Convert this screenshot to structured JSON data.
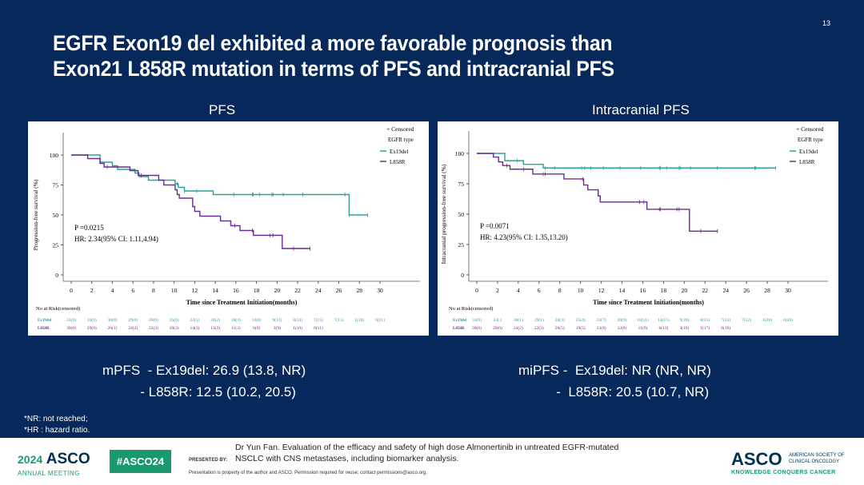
{
  "slide": {
    "page_number": "13",
    "title_line1": "EGFR Exon19 del exhibited a more favorable prognosis than",
    "title_line2": "Exon21 L858R mutation in terms of PFS and intracranial PFS",
    "pfs_summary_line1": "mPFS  - Ex19del: 26.9 (13.8, NR)",
    "pfs_summary_line2": "          - L858R: 12.5 (10.2, 20.5)",
    "ipfs_summary_line1": "miPFS -  Ex19del: NR (NR, NR)",
    "ipfs_summary_line2": "          -  L858R: 20.5 (10.7, NR)",
    "note1": "*NR: not reached;",
    "note2": "*HR : hazard ratio."
  },
  "footer": {
    "logo_year": "2024",
    "logo_text": "ASCO",
    "logo_sub": "ANNUAL MEETING",
    "hashtag": "#ASCO24",
    "presented_by": "PRESENTED BY:",
    "citation": "Dr Yun Fan. Evaluation of the efficacy and safety of high dose Almonertinib in untreated EGFR-mutated\nNSCLC with CNS metastases, including biomarker analysis.",
    "property": "Presentation is property of the author and ASCO. Permission required for reuse; contact permissions@asco.org.",
    "asco_right": "ASCO",
    "asco_society": "AMERICAN SOCIETY OF\nCLINICAL ONCOLOGY",
    "asco_tagline": "KNOWLEDGE CONQUERS CANCER"
  },
  "colors": {
    "background": "#06285a",
    "ex19del": "#2aa198",
    "l858r": "#6a2c91",
    "accent": "#1a9a6c"
  },
  "chart_data": [
    {
      "type": "line",
      "subtype": "kaplan-meier",
      "title": "PFS",
      "xlabel": "Time since Treatment Initiation(months)",
      "ylabel": "Progression-free survival (%)",
      "xlim": [
        0,
        30
      ],
      "ylim": [
        0,
        100
      ],
      "xticks": [
        0,
        2,
        4,
        6,
        8,
        10,
        12,
        14,
        16,
        18,
        20,
        22,
        24,
        26,
        28,
        30
      ],
      "yticks": [
        0,
        25,
        50,
        75,
        100
      ],
      "legend": {
        "censored": "+ Censored",
        "title": "EGFR type",
        "placement": "top-right"
      },
      "annotation_p": "P =0.0215",
      "annotation_hr": "HR: 2.34(95% CI: 1.11,4.94)",
      "risk_title": "No at Risk(censored)",
      "series": [
        {
          "name": "Ex19del",
          "steps": [
            [
              0,
              100
            ],
            [
              2.8,
              94
            ],
            [
              4,
              91
            ],
            [
              4.5,
              88
            ],
            [
              6.2,
              85
            ],
            [
              6.6,
              82
            ],
            [
              7.5,
              79
            ],
            [
              10.1,
              76
            ],
            [
              10.4,
              73
            ],
            [
              11,
              70
            ],
            [
              13.8,
              67
            ],
            [
              27,
              50
            ]
          ],
          "end": 28.8,
          "censored": [
            10.3,
            11,
            12.2,
            15.8,
            17.6,
            17.7,
            18.3,
            19.5,
            19.6,
            20.6,
            22.5,
            26.6,
            27,
            28.8
          ],
          "risk_label": "Ex19del",
          "at_risk": [
            "33(0)",
            "33(0)",
            "30(0)",
            "29(0)",
            "26(0)",
            "25(0)",
            "22(1)",
            "20(2)",
            "18(4)",
            "14(8)",
            "9(13)",
            "8(14)",
            "7(15)",
            "7(15)",
            "1(20)",
            "0(21)"
          ]
        },
        {
          "name": "L858R",
          "steps": [
            [
              0,
              100
            ],
            [
              1.6,
              97
            ],
            [
              2.8,
              93
            ],
            [
              3.2,
              90
            ],
            [
              5.7,
              87
            ],
            [
              6.5,
              83
            ],
            [
              8.5,
              79
            ],
            [
              9,
              75
            ],
            [
              10.1,
              71
            ],
            [
              10.3,
              67
            ],
            [
              10.5,
              64
            ],
            [
              11.8,
              57
            ],
            [
              12,
              53
            ],
            [
              12.5,
              49
            ],
            [
              14.5,
              45
            ],
            [
              15.5,
              41
            ],
            [
              16.4,
              37
            ],
            [
              17.7,
              33
            ],
            [
              20.5,
              22
            ]
          ],
          "end": 23.2,
          "censored": [
            3.5,
            6.8,
            15.9,
            17.6,
            19.3,
            19.6,
            21.6,
            23.2
          ],
          "risk_label": "L858R",
          "at_risk": [
            "30(0)",
            "29(0)",
            "26(1)",
            "24(2)",
            "22(3)",
            "20(3)",
            "14(3)",
            "13(3)",
            "11(3)",
            "6(6)",
            "3(9)",
            "1(10)",
            "0(11)"
          ]
        }
      ]
    },
    {
      "type": "line",
      "subtype": "kaplan-meier",
      "title": "Intracranial PFS",
      "xlabel": "Time since Treatment Initiation(months)",
      "ylabel": "Intracranial progression-free survival (%)",
      "xlim": [
        0,
        30
      ],
      "ylim": [
        0,
        100
      ],
      "xticks": [
        0,
        2,
        4,
        6,
        8,
        10,
        12,
        14,
        16,
        18,
        20,
        22,
        24,
        26,
        28,
        30
      ],
      "yticks": [
        0,
        25,
        50,
        75,
        100
      ],
      "legend": {
        "censored": "+ Censored",
        "title": "EGFR type",
        "placement": "top-right"
      },
      "annotation_p": "P =0.0071",
      "annotation_hr": "HR: 4.23(95% CI: 1.35,13.20)",
      "risk_title": "No at Risk(censored)",
      "series": [
        {
          "name": "Ex19del",
          "steps": [
            [
              0,
              100
            ],
            [
              2.7,
              94
            ],
            [
              4.5,
              91
            ],
            [
              6.4,
              88
            ]
          ],
          "end": 28.8,
          "censored": [
            3.9,
            6.6,
            7.5,
            10.1,
            10.4,
            11,
            12.2,
            13.8,
            15.8,
            17.6,
            17.7,
            18.3,
            19.5,
            19.6,
            20.6,
            23.2,
            26.8,
            26.9,
            28.8
          ],
          "risk_label": "Ex19del",
          "at_risk": [
            "33(0)",
            "33(.)",
            "30(1)",
            "29(1)",
            "26(3)",
            "25(4)",
            "22(7)",
            "20(9)",
            "18(11)",
            "14(15)",
            "9(20)",
            "8(21)",
            "7(22)",
            "7(22)",
            "1(28)",
            "0(29)"
          ]
        },
        {
          "name": "L858R",
          "steps": [
            [
              0,
              100
            ],
            [
              1.6,
              97
            ],
            [
              2.1,
              93
            ],
            [
              2.5,
              90
            ],
            [
              3.2,
              87
            ],
            [
              5.4,
              83
            ],
            [
              8.4,
              79
            ],
            [
              10.3,
              74
            ],
            [
              10.7,
              70
            ],
            [
              11.7,
              65
            ],
            [
              11.9,
              60
            ],
            [
              16.4,
              54
            ],
            [
              20.5,
              36
            ]
          ],
          "end": 23.2,
          "censored": [
            2.9,
            4.5,
            6.4,
            6.6,
            10.2,
            15.7,
            16.1,
            17.6,
            17.7,
            19.3,
            19.5,
            21.6,
            23.2
          ],
          "risk_label": "L858R",
          "at_risk": [
            "30(0)",
            "29(0)",
            "24(2)",
            "22(3)",
            "20(5)",
            "19(5)",
            "12(8)",
            "12(8)",
            "11(9)",
            "6(13)",
            "3(16)",
            "1(17)",
            "0(18)"
          ]
        }
      ]
    }
  ]
}
